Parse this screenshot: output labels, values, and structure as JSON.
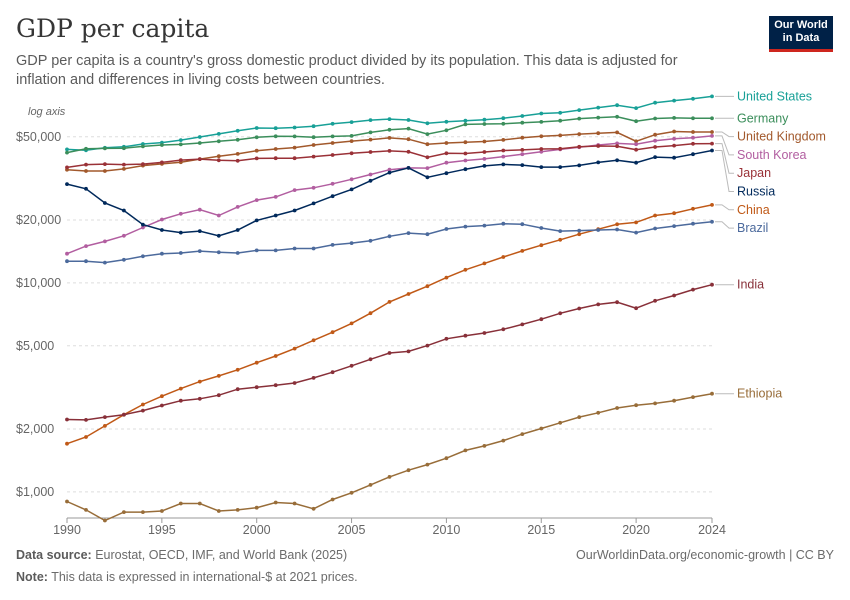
{
  "header": {
    "title": "GDP per capita",
    "subtitle": "GDP per capita is a country's gross domestic product divided by its population. This data is adjusted for inflation and differences in living costs between countries.",
    "logo_line1": "Our World",
    "logo_line2": "in Data"
  },
  "footer": {
    "source_label": "Data source:",
    "source_text": " Eurostat, OECD, IMF, and World Bank (2025)",
    "note_label": "Note:",
    "note_text": " This data is expressed in international-$ at 2021 prices.",
    "credit": "OurWorldinData.org/economic-growth | CC BY"
  },
  "chart_data": {
    "type": "line",
    "title": "GDP per capita",
    "yscale": "log",
    "yscale_label": "log axis",
    "grid": "horizontal dashed",
    "legend": "right, end of lines",
    "ylim": [
      750,
      75000
    ],
    "xlim": [
      1990,
      2024
    ],
    "x": [
      1990,
      1991,
      1992,
      1993,
      1994,
      1995,
      1996,
      1997,
      1998,
      1999,
      2000,
      2001,
      2002,
      2003,
      2004,
      2005,
      2006,
      2007,
      2008,
      2009,
      2010,
      2011,
      2012,
      2013,
      2014,
      2015,
      2016,
      2017,
      2018,
      2019,
      2020,
      2021,
      2022,
      2023,
      2024
    ],
    "x_ticks": [
      1990,
      1995,
      2000,
      2005,
      2010,
      2015,
      2020,
      2024
    ],
    "x_tick_labels": [
      "1990",
      "1995",
      "2000",
      "2005",
      "2010",
      "2015",
      "2020",
      "2024"
    ],
    "y_ticks": [
      1000,
      2000,
      5000,
      10000,
      20000,
      50000
    ],
    "y_tick_labels": [
      "$1,000",
      "$2,000",
      "$5,000",
      "$10,000",
      "$20,000",
      "$50,000"
    ],
    "series": [
      {
        "name": "United States",
        "color": "#18a097",
        "values": [
          43500,
          43100,
          44300,
          44800,
          46200,
          46900,
          48200,
          49900,
          51600,
          53400,
          55100,
          55000,
          55400,
          56200,
          57700,
          58800,
          60100,
          60800,
          60200,
          58000,
          59000,
          59700,
          60400,
          61400,
          62900,
          64600,
          65100,
          67100,
          69000,
          70800,
          68600,
          72800,
          74500,
          76000,
          78000
        ]
      },
      {
        "name": "Germany",
        "color": "#3b8e5b",
        "values": [
          42000,
          43800,
          44000,
          44100,
          45000,
          45700,
          46000,
          46700,
          47600,
          48400,
          49700,
          50300,
          50200,
          49800,
          50200,
          50500,
          52500,
          54000,
          54700,
          51500,
          53700,
          57300,
          57600,
          57700,
          58400,
          58900,
          59700,
          61100,
          61800,
          62300,
          59400,
          61200,
          61600,
          61300,
          61300
        ]
      },
      {
        "name": "United Kingdom",
        "color": "#a2592c",
        "values": [
          34800,
          34300,
          34300,
          35100,
          36400,
          37100,
          37800,
          39100,
          40400,
          41400,
          42900,
          43700,
          44400,
          45700,
          46700,
          47700,
          48500,
          49400,
          48700,
          46100,
          46700,
          47100,
          47500,
          48300,
          49500,
          50300,
          50800,
          51500,
          52000,
          52500,
          47600,
          51200,
          53000,
          52700,
          52700
        ]
      },
      {
        "name": "South Korea",
        "color": "#b25ea0",
        "values": [
          13800,
          15000,
          15800,
          16800,
          18400,
          20100,
          21400,
          22400,
          21000,
          23100,
          24900,
          25800,
          27800,
          28500,
          29800,
          31300,
          33000,
          34800,
          35500,
          35400,
          37600,
          38500,
          39200,
          40200,
          41300,
          42400,
          43500,
          44600,
          45700,
          46500,
          46100,
          47900,
          48900,
          49500,
          50500
        ]
      },
      {
        "name": "Japan",
        "color": "#9a3137",
        "values": [
          35700,
          36800,
          37000,
          36800,
          37000,
          37700,
          38700,
          39100,
          38600,
          38400,
          39400,
          39500,
          39500,
          40200,
          40900,
          41700,
          42300,
          42800,
          42400,
          39900,
          41700,
          41600,
          42300,
          43000,
          43300,
          43700,
          43800,
          44800,
          45200,
          45100,
          43400,
          44700,
          45400,
          46300,
          46400
        ]
      },
      {
        "name": "Russia",
        "color": "#00295b",
        "values": [
          29700,
          28200,
          24100,
          22200,
          19000,
          17900,
          17400,
          17700,
          16800,
          17900,
          19900,
          21000,
          22200,
          24000,
          26000,
          28000,
          30800,
          33700,
          35500,
          32000,
          33500,
          35000,
          36300,
          36900,
          36600,
          35800,
          35800,
          36500,
          37700,
          38600,
          37600,
          40000,
          39700,
          41300,
          43000
        ]
      },
      {
        "name": "China",
        "color": "#c05917",
        "values": [
          1700,
          1830,
          2070,
          2340,
          2620,
          2870,
          3120,
          3370,
          3590,
          3840,
          4150,
          4470,
          4850,
          5310,
          5810,
          6400,
          7160,
          8110,
          8850,
          9640,
          10600,
          11550,
          12390,
          13300,
          14230,
          15140,
          16080,
          17090,
          18060,
          19070,
          19470,
          21020,
          21540,
          22610,
          23600
        ]
      },
      {
        "name": "Brazil",
        "color": "#4c6a9c",
        "values": [
          12700,
          12700,
          12500,
          12900,
          13400,
          13800,
          13900,
          14200,
          14000,
          13900,
          14300,
          14300,
          14600,
          14600,
          15200,
          15500,
          15900,
          16700,
          17300,
          17100,
          18100,
          18600,
          18800,
          19200,
          19100,
          18300,
          17700,
          17800,
          17900,
          18000,
          17400,
          18200,
          18700,
          19200,
          19600
        ]
      },
      {
        "name": "India",
        "color": "#883039",
        "values": [
          2220,
          2210,
          2280,
          2340,
          2450,
          2590,
          2730,
          2790,
          2900,
          3100,
          3170,
          3240,
          3320,
          3510,
          3740,
          4010,
          4310,
          4620,
          4700,
          5010,
          5400,
          5590,
          5760,
          6000,
          6330,
          6700,
          7150,
          7540,
          7890,
          8080,
          7570,
          8210,
          8700,
          9290,
          9800
        ]
      },
      {
        "name": "Ethiopia",
        "color": "#986d39",
        "values": [
          900,
          820,
          730,
          800,
          800,
          810,
          880,
          880,
          810,
          820,
          840,
          890,
          880,
          830,
          920,
          990,
          1080,
          1180,
          1270,
          1350,
          1450,
          1580,
          1660,
          1760,
          1890,
          2010,
          2140,
          2280,
          2390,
          2520,
          2600,
          2650,
          2730,
          2840,
          2950
        ]
      }
    ]
  }
}
